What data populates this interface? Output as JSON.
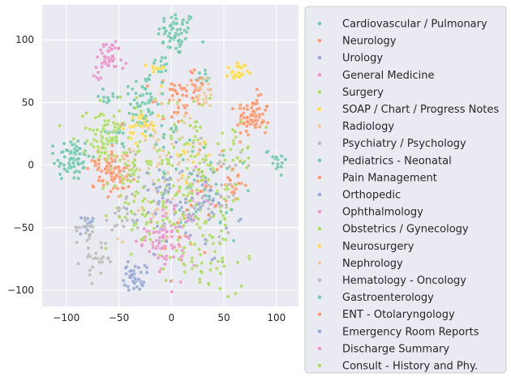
{
  "chart_data": {
    "type": "scatter",
    "title": "",
    "xlabel": "",
    "ylabel": "",
    "xlim": [
      -123,
      121
    ],
    "ylim": [
      -113,
      128
    ],
    "x_ticks": [
      -100,
      -50,
      0,
      50,
      100
    ],
    "y_ticks": [
      -100,
      -50,
      0,
      50,
      100
    ],
    "x_tick_labels": [
      "−100",
      "−50",
      "0",
      "50",
      "100"
    ],
    "y_tick_labels": [
      "−100",
      "−50",
      "0",
      "50",
      "100"
    ],
    "grid": true,
    "legend_position": "right-outside",
    "series": [
      {
        "name": "Cardiovascular / Pulmonary",
        "color": "#66c2a5",
        "clusters": [
          [
            5,
            105,
            9,
            60
          ],
          [
            -95,
            5,
            9,
            70
          ],
          [
            -50,
            25,
            6,
            20
          ],
          [
            30,
            70,
            4,
            12
          ],
          [
            -10,
            80,
            4,
            10
          ]
        ]
      },
      {
        "name": "Neurology",
        "color": "#fc8d62",
        "clusters": [
          [
            78,
            37,
            8,
            60
          ],
          [
            -55,
            -10,
            8,
            45
          ],
          [
            20,
            60,
            8,
            35
          ],
          [
            40,
            -10,
            15,
            20
          ]
        ]
      },
      {
        "name": "Urology",
        "color": "#8da0cb",
        "clusters": [
          [
            -35,
            -90,
            5,
            25
          ],
          [
            -80,
            -48,
            4,
            15
          ],
          [
            30,
            -40,
            12,
            15
          ]
        ]
      },
      {
        "name": "General Medicine",
        "color": "#e78ac3",
        "clusters": [
          [
            -60,
            88,
            6,
            30
          ],
          [
            0,
            -55,
            12,
            45
          ],
          [
            30,
            -20,
            10,
            15
          ]
        ]
      },
      {
        "name": "Surgery",
        "color": "#a6d854",
        "clusters": [
          [
            0,
            -10,
            30,
            120
          ],
          [
            -60,
            20,
            10,
            30
          ],
          [
            30,
            -70,
            15,
            30
          ]
        ]
      },
      {
        "name": "SOAP / Chart / Progress Notes",
        "color": "#ffd92f",
        "clusters": [
          [
            65,
            73,
            4,
            15
          ],
          [
            -25,
            30,
            6,
            15
          ],
          [
            -15,
            75,
            4,
            8
          ]
        ]
      },
      {
        "name": "Radiology",
        "color": "#e5c494",
        "clusters": [
          [
            0,
            20,
            20,
            40
          ],
          [
            -20,
            -30,
            15,
            20
          ]
        ]
      },
      {
        "name": "Psychiatry / Psychology",
        "color": "#b3b3b3",
        "clusters": [
          [
            -70,
            -75,
            8,
            25
          ],
          [
            -50,
            -45,
            8,
            20
          ],
          [
            40,
            0,
            15,
            15
          ]
        ]
      },
      {
        "name": "Pediatrics - Neonatal",
        "color": "#66c2a5",
        "clusters": [
          [
            -30,
            45,
            10,
            30
          ],
          [
            100,
            5,
            5,
            15
          ],
          [
            40,
            -30,
            15,
            20
          ],
          [
            -60,
            55,
            5,
            10
          ]
        ]
      },
      {
        "name": "Pain Management",
        "color": "#fc8d62",
        "clusters": [
          [
            -60,
            5,
            8,
            25
          ],
          [
            0,
            50,
            10,
            20
          ],
          [
            60,
            -10,
            10,
            15
          ]
        ]
      },
      {
        "name": "Orthopedic",
        "color": "#8da0cb",
        "clusters": [
          [
            20,
            -40,
            20,
            40
          ],
          [
            -15,
            -20,
            10,
            15
          ]
        ]
      },
      {
        "name": "Ophthalmology",
        "color": "#e78ac3",
        "clusters": [
          [
            -10,
            -60,
            8,
            25
          ],
          [
            -70,
            70,
            3,
            5
          ]
        ]
      },
      {
        "name": "Obstetrics / Gynecology",
        "color": "#a6d854",
        "clusters": [
          [
            -60,
            20,
            10,
            30
          ],
          [
            -25,
            -40,
            10,
            20
          ],
          [
            60,
            10,
            10,
            15
          ]
        ]
      },
      {
        "name": "Neurosurgery",
        "color": "#ffd92f",
        "clusters": [
          [
            -30,
            30,
            6,
            15
          ],
          [
            60,
            75,
            4,
            10
          ],
          [
            20,
            5,
            10,
            10
          ]
        ]
      },
      {
        "name": "Nephrology",
        "color": "#e5c494",
        "clusters": [
          [
            30,
            60,
            8,
            15
          ],
          [
            -30,
            10,
            10,
            10
          ]
        ]
      },
      {
        "name": "Hematology - Oncology",
        "color": "#b3b3b3",
        "clusters": [
          [
            -80,
            -50,
            5,
            15
          ],
          [
            40,
            -30,
            15,
            20
          ],
          [
            -40,
            0,
            10,
            10
          ]
        ]
      },
      {
        "name": "Gastroenterology",
        "color": "#66c2a5",
        "clusters": [
          [
            -25,
            60,
            10,
            25
          ],
          [
            20,
            -5,
            15,
            20
          ],
          [
            -5,
            30,
            8,
            10
          ]
        ]
      },
      {
        "name": "ENT - Otolaryngology",
        "color": "#fc8d62",
        "clusters": [
          [
            -55,
            -5,
            6,
            20
          ],
          [
            75,
            45,
            6,
            15
          ],
          [
            20,
            -30,
            15,
            15
          ]
        ]
      },
      {
        "name": "Emergency Room Reports",
        "color": "#8da0cb",
        "clusters": [
          [
            -35,
            -90,
            6,
            15
          ],
          [
            0,
            -30,
            20,
            25
          ]
        ]
      },
      {
        "name": "Discharge Summary",
        "color": "#e78ac3",
        "clusters": [
          [
            -60,
            85,
            6,
            15
          ],
          [
            0,
            -70,
            15,
            20
          ]
        ]
      },
      {
        "name": "Consult - History and Phy.",
        "color": "#a6d854",
        "clusters": [
          [
            10,
            -10,
            35,
            80
          ],
          [
            -70,
            30,
            15,
            20
          ],
          [
            40,
            -80,
            15,
            20
          ]
        ]
      }
    ]
  }
}
